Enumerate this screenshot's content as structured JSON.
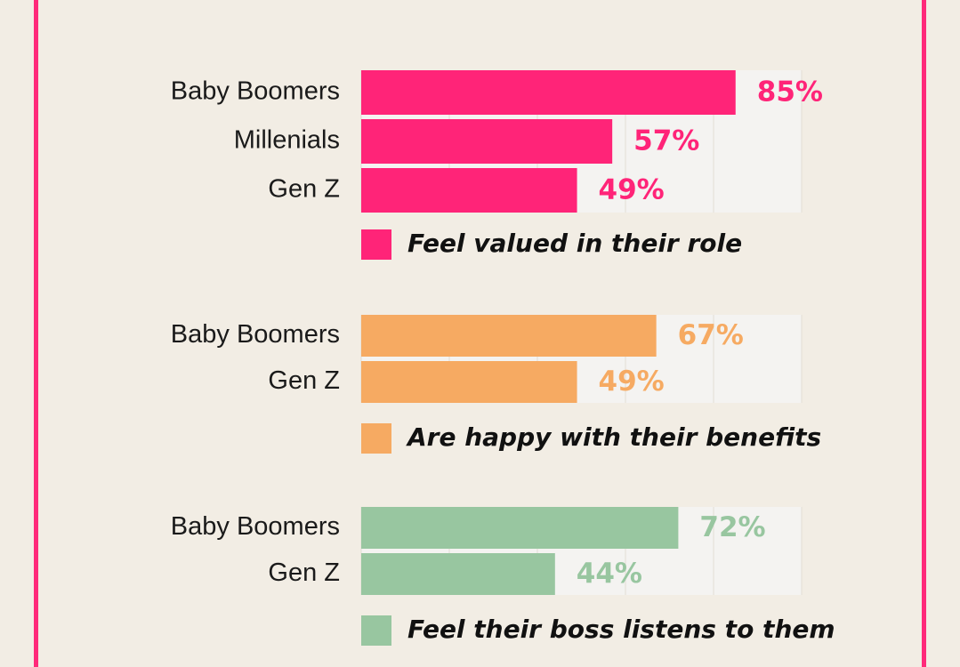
{
  "chart_data": [
    {
      "type": "bar",
      "orientation": "horizontal",
      "categories": [
        "Baby Boomers",
        "Millenials",
        "Gen Z"
      ],
      "series": [
        {
          "name": "Feel valued in their role",
          "color": "#ff2478",
          "values": [
            85,
            57,
            49
          ],
          "value_labels": [
            "85%",
            "57%",
            "49%"
          ]
        }
      ],
      "xlim": [
        0,
        100
      ],
      "xticks": [
        0,
        20,
        40,
        60,
        80,
        100
      ],
      "grid": true
    },
    {
      "type": "bar",
      "orientation": "horizontal",
      "categories": [
        "Baby Boomers",
        "Gen Z"
      ],
      "series": [
        {
          "name": "Are happy with their benefits",
          "color": "#f6aa62",
          "values": [
            67,
            49
          ],
          "value_labels": [
            "67%",
            "49%"
          ]
        }
      ],
      "xlim": [
        0,
        100
      ],
      "xticks": [
        0,
        20,
        40,
        60,
        80,
        100
      ],
      "grid": true
    },
    {
      "type": "bar",
      "orientation": "horizontal",
      "categories": [
        "Baby Boomers",
        "Gen Z"
      ],
      "series": [
        {
          "name": "Feel their boss listens to them",
          "color": "#98c6a0",
          "values": [
            72,
            44
          ],
          "value_labels": [
            "72%",
            "44%"
          ]
        }
      ],
      "xlim": [
        0,
        100
      ],
      "xticks": [
        0,
        20,
        40,
        60,
        80,
        100
      ],
      "grid": true
    }
  ]
}
